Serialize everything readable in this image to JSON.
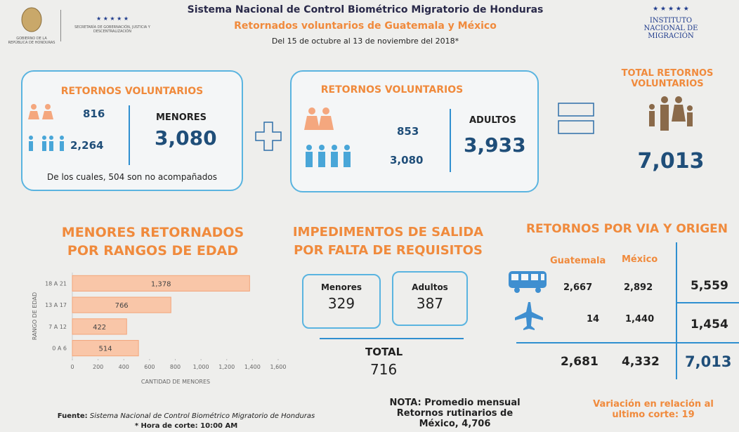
{
  "header": {
    "title": "Sistema Nacional de Control Biométrico Migratorio de Honduras",
    "subtitle": "Retornados voluntarios de Guatemala y México",
    "period": "Del 15 de octubre al 13 de noviembre del 2018*",
    "left_logo": {
      "caption": "GOBIERNO DE LA REPÚBLICA DE HONDURAS",
      "stars": "★ ★ ★ ★ ★",
      "secretaria": "SECRETARÍA DE GOBERNACIÓN, JUSTICIA Y DESCENTRALIZACIÓN"
    },
    "right_logo": {
      "stars": "★ ★ ★ ★ ★",
      "name": "INSTITUTO NACIONAL DE MIGRACIÓN"
    }
  },
  "menores_box": {
    "title": "RETORNOS VOLUNTARIOS",
    "girls": "816",
    "boys": "2,264",
    "label": "MENORES",
    "total": "3,080",
    "note": "De los cuales, 504 son no acompañados"
  },
  "adultos_box": {
    "title": "RETORNOS VOLUNTARIOS",
    "women": "853",
    "men": "3,080",
    "label": "ADULTOS",
    "total": "3,933"
  },
  "total_box": {
    "title": "TOTAL RETORNOS VOLUNTARIOS",
    "total": "7,013"
  },
  "chart_data": {
    "type": "bar",
    "orientation": "horizontal",
    "title": "MENORES RETORNADOS POR RANGOS DE EDAD",
    "categories": [
      "18 A 21",
      "13 A 17",
      "7 A 12",
      "0 A 6"
    ],
    "values": [
      1378,
      766,
      422,
      514
    ],
    "value_labels": [
      "1,378",
      "766",
      "422",
      "514"
    ],
    "color": "#f9c6a8",
    "xlim": [
      0,
      1600
    ],
    "xticks": [
      0,
      200,
      400,
      600,
      800,
      {
        "value": 1000,
        "label": "1,000"
      },
      {
        "value": 1200,
        "label": "1,200"
      },
      {
        "value": 1400,
        "label": "1,400"
      },
      {
        "value": 1600,
        "label": "1,600"
      }
    ],
    "x_label": "CANTIDAD DE MENORES",
    "y_label": "RANGO DE EDAD"
  },
  "impedimentos": {
    "title": "IMPEDIMENTOS DE SALIDA POR FALTA DE REQUISITOS",
    "menores_label": "Menores",
    "menores": "329",
    "adultos_label": "Adultos",
    "adultos": "387",
    "total_label": "TOTAL",
    "total": "716"
  },
  "via": {
    "title": "RETORNOS POR VIA Y ORIGEN",
    "columns": [
      "Guatemala",
      "México"
    ],
    "rows": [
      [
        "2,667",
        "2,892",
        "5,559"
      ],
      [
        "14",
        "1,440",
        "1,454"
      ]
    ],
    "totals": [
      "2,681",
      "4,332",
      "7,013"
    ]
  },
  "nota": "NOTA: Promedio mensual Retornos rutinarios de México, 4,706",
  "variacion": "Variación en relación al ultimo corte: 19",
  "footer": {
    "source_label": "Fuente:",
    "source": "Sistema Nacional de Control Biométrico Migratorio de Honduras",
    "cutoff": "* Hora de corte: 10:00 AM"
  }
}
